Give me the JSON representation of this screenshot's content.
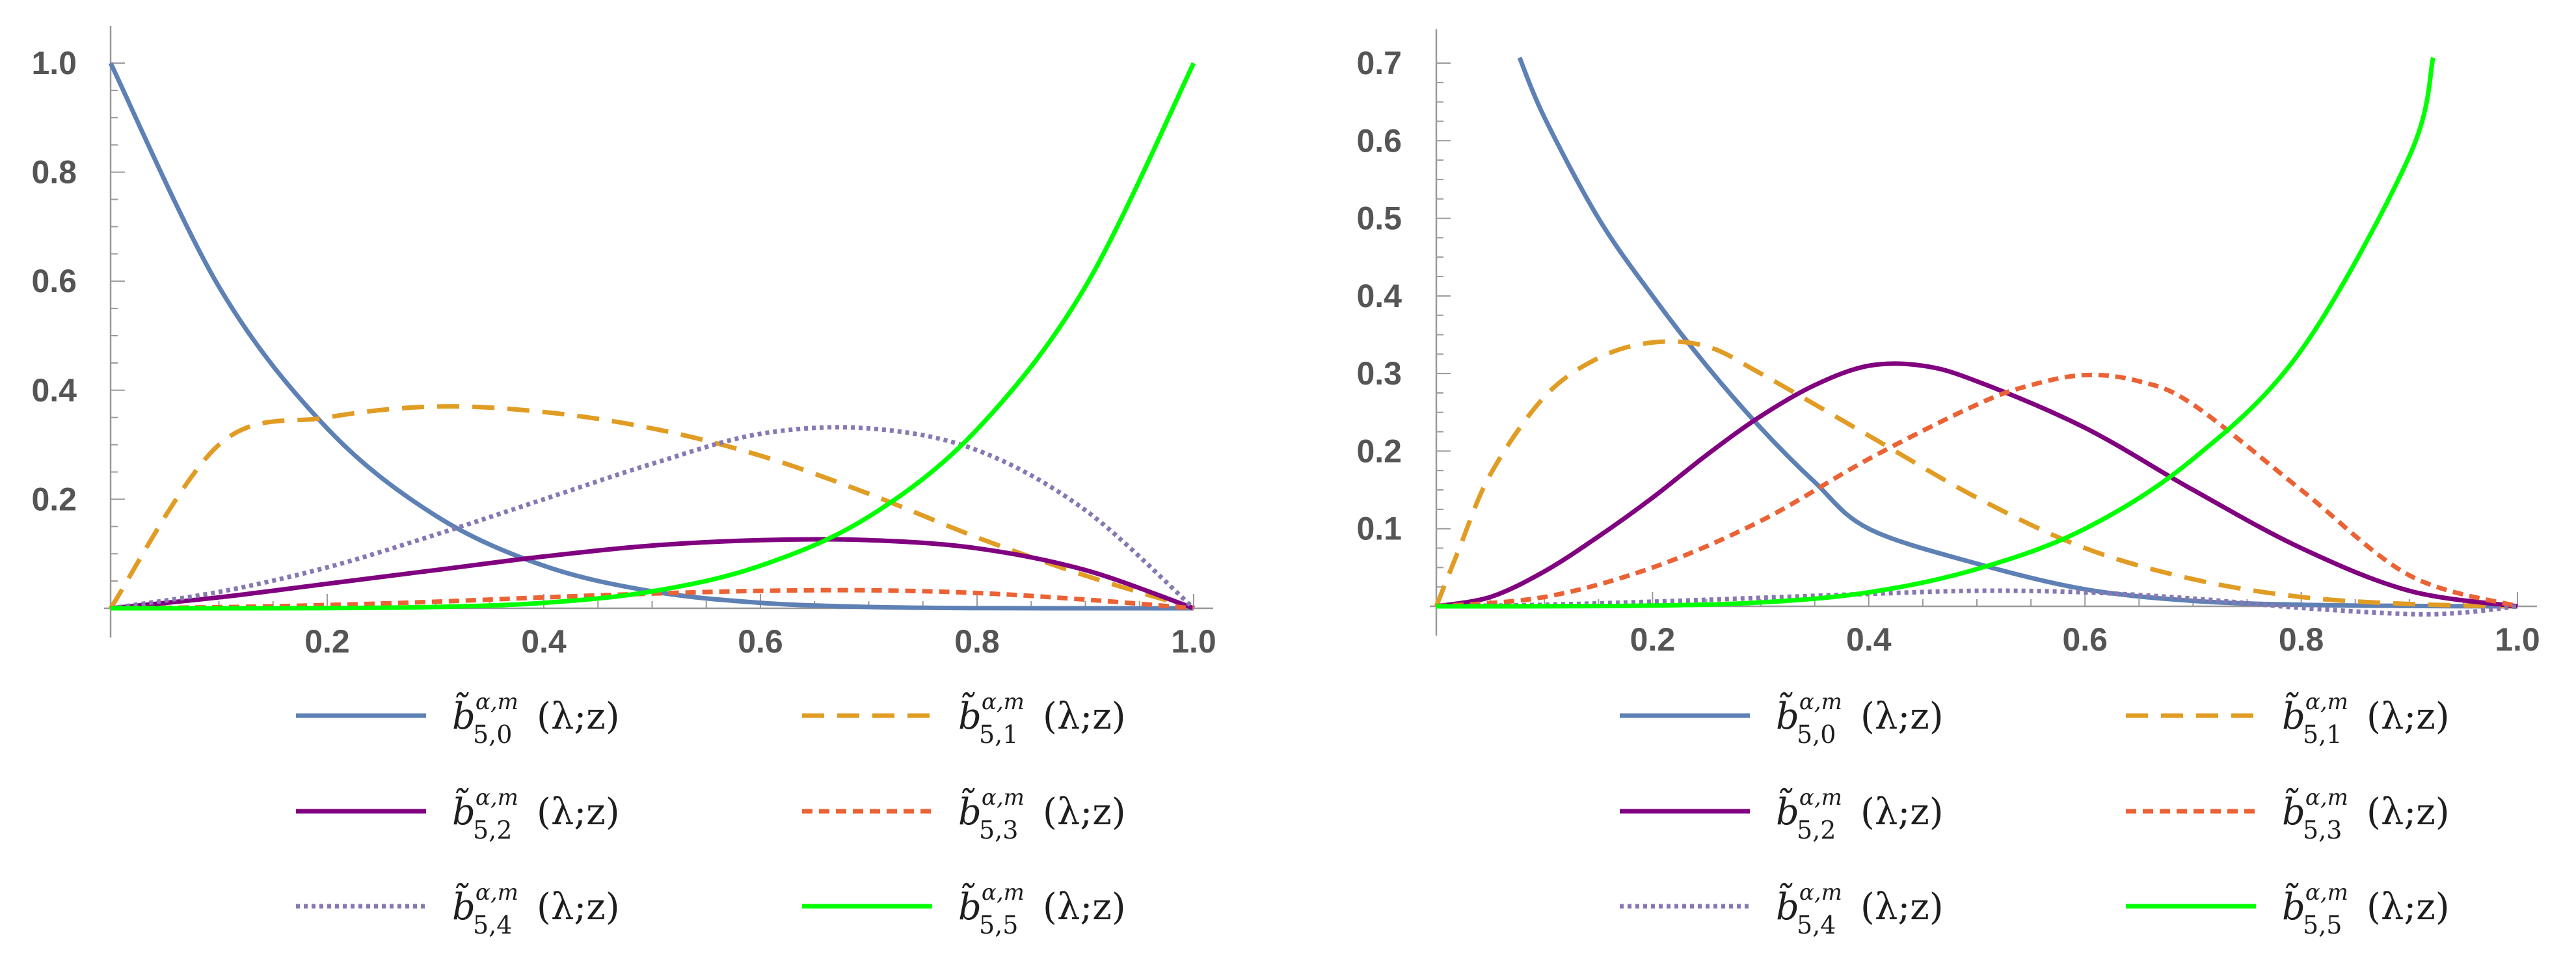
{
  "chart_data": [
    {
      "type": "line",
      "name": "left",
      "xlim": [
        0,
        1
      ],
      "ylim": [
        0,
        1
      ],
      "x_ticks": [
        "0.2",
        "0.4",
        "0.6",
        "0.8",
        "1.0"
      ],
      "y_ticks": [
        "0.2",
        "0.4",
        "0.6",
        "0.8",
        "1.0"
      ],
      "x_tick_values": [
        0.2,
        0.4,
        0.6,
        0.8,
        1.0
      ],
      "y_tick_values": [
        0.2,
        0.4,
        0.6,
        0.8,
        1.0
      ],
      "series": [
        {
          "id": "b50",
          "x": [
            0,
            0.1,
            0.2,
            0.3,
            0.4,
            0.5,
            0.6,
            0.7,
            0.8,
            0.9,
            1.0
          ],
          "y": [
            1.0,
            0.59,
            0.33,
            0.17,
            0.078,
            0.031,
            0.01,
            0.0024,
            0.0003,
            0.0,
            0.0
          ]
        },
        {
          "id": "b51",
          "x": [
            0,
            0.1,
            0.2,
            0.3,
            0.4,
            0.5,
            0.6,
            0.7,
            0.8,
            0.9,
            1.0
          ],
          "y": [
            0,
            0.3,
            0.35,
            0.37,
            0.36,
            0.33,
            0.28,
            0.21,
            0.13,
            0.06,
            0
          ]
        },
        {
          "id": "b52",
          "x": [
            0,
            0.1,
            0.2,
            0.3,
            0.4,
            0.5,
            0.6,
            0.7,
            0.8,
            0.9,
            1.0
          ],
          "y": [
            0,
            0.02,
            0.045,
            0.07,
            0.095,
            0.115,
            0.125,
            0.125,
            0.11,
            0.07,
            0
          ]
        },
        {
          "id": "b53",
          "x": [
            0,
            0.1,
            0.2,
            0.3,
            0.4,
            0.5,
            0.6,
            0.7,
            0.8,
            0.9,
            1.0
          ],
          "y": [
            0,
            0.002,
            0.006,
            0.012,
            0.02,
            0.027,
            0.032,
            0.033,
            0.028,
            0.016,
            0
          ]
        },
        {
          "id": "b54",
          "x": [
            0,
            0.1,
            0.2,
            0.3,
            0.4,
            0.5,
            0.6,
            0.7,
            0.8,
            0.9,
            1.0
          ],
          "y": [
            0,
            0.03,
            0.075,
            0.135,
            0.2,
            0.265,
            0.32,
            0.33,
            0.29,
            0.18,
            0
          ]
        },
        {
          "id": "b55",
          "x": [
            0,
            0.1,
            0.2,
            0.3,
            0.4,
            0.5,
            0.6,
            0.7,
            0.8,
            0.9,
            1.0
          ],
          "y": [
            0,
            1e-05,
            0.0003,
            0.0024,
            0.01,
            0.031,
            0.078,
            0.168,
            0.328,
            0.59,
            1.0
          ]
        }
      ]
    },
    {
      "type": "line",
      "name": "right",
      "xlim": [
        0,
        1
      ],
      "ylim": [
        0,
        0.7
      ],
      "x_ticks": [
        "0.2",
        "0.4",
        "0.6",
        "0.8",
        "1.0"
      ],
      "y_ticks": [
        "0.1",
        "0.2",
        "0.3",
        "0.4",
        "0.5",
        "0.6",
        "0.7"
      ],
      "x_tick_values": [
        0.2,
        0.4,
        0.6,
        0.8,
        1.0
      ],
      "y_tick_values": [
        0.1,
        0.2,
        0.3,
        0.4,
        0.5,
        0.6,
        0.7
      ],
      "series": [
        {
          "id": "b50",
          "x": [
            0.077,
            0.1,
            0.15,
            0.2,
            0.25,
            0.3,
            0.35,
            0.4,
            0.5,
            0.6,
            0.7,
            0.8,
            0.9,
            1.0
          ],
          "y": [
            0.707,
            0.63,
            0.5,
            0.4,
            0.31,
            0.23,
            0.16,
            0.1,
            0.055,
            0.022,
            0.007,
            0.002,
            0.0005,
            0.0
          ]
        },
        {
          "id": "b51",
          "x": [
            0,
            0.02,
            0.05,
            0.1,
            0.15,
            0.2,
            0.25,
            0.3,
            0.4,
            0.5,
            0.6,
            0.7,
            0.8,
            0.9,
            1.0
          ],
          "y": [
            0,
            0.07,
            0.17,
            0.27,
            0.32,
            0.34,
            0.335,
            0.3,
            0.22,
            0.14,
            0.075,
            0.035,
            0.012,
            0.003,
            0
          ]
        },
        {
          "id": "b52",
          "x": [
            0,
            0.05,
            0.1,
            0.15,
            0.2,
            0.25,
            0.3,
            0.35,
            0.4,
            0.45,
            0.5,
            0.6,
            0.7,
            0.8,
            0.9,
            1.0
          ],
          "y": [
            0,
            0.012,
            0.045,
            0.09,
            0.14,
            0.195,
            0.245,
            0.285,
            0.31,
            0.31,
            0.29,
            0.23,
            0.15,
            0.075,
            0.02,
            0
          ]
        },
        {
          "id": "b53",
          "x": [
            0,
            0.1,
            0.2,
            0.3,
            0.4,
            0.5,
            0.55,
            0.6,
            0.65,
            0.7,
            0.8,
            0.9,
            1.0
          ],
          "y": [
            0,
            0.012,
            0.05,
            0.11,
            0.19,
            0.26,
            0.285,
            0.298,
            0.29,
            0.26,
            0.15,
            0.04,
            0
          ]
        },
        {
          "id": "b54",
          "x": [
            0,
            0.1,
            0.2,
            0.3,
            0.4,
            0.5,
            0.6,
            0.7,
            0.8,
            0.9,
            0.95,
            1.0
          ],
          "y": [
            0,
            0.002,
            0.006,
            0.011,
            0.016,
            0.02,
            0.018,
            0.01,
            -0.002,
            -0.01,
            -0.008,
            0
          ]
        },
        {
          "id": "b55",
          "x": [
            0,
            0.1,
            0.2,
            0.3,
            0.4,
            0.5,
            0.6,
            0.7,
            0.8,
            0.9,
            0.922
          ],
          "y": [
            0,
            0.0001,
            0.001,
            0.005,
            0.018,
            0.048,
            0.1,
            0.19,
            0.33,
            0.58,
            0.707
          ]
        }
      ]
    }
  ],
  "legend": {
    "items": [
      {
        "id": "b50",
        "base": "b̃",
        "sup": "α,m",
        "sub": "5,0",
        "arg": "(λ;z)",
        "color": "#5e81b5",
        "dash": ""
      },
      {
        "id": "b51",
        "base": "b̃",
        "sup": "α,m",
        "sub": "5,1",
        "arg": "(λ;z)",
        "color": "#e19c24",
        "dash": "34,20"
      },
      {
        "id": "b52",
        "base": "b̃",
        "sup": "α,m",
        "sub": "5,2",
        "arg": "(λ;z)",
        "color": "#800080",
        "dash": ""
      },
      {
        "id": "b53",
        "base": "b̃",
        "sup": "α,m",
        "sub": "5,3",
        "arg": "(λ;z)",
        "color": "#eb6235",
        "dash": "16,10"
      },
      {
        "id": "b54",
        "base": "b̃",
        "sup": "α,m",
        "sub": "5,4",
        "arg": "(λ;z)",
        "color": "#8778b3",
        "dash": "6,6"
      },
      {
        "id": "b55",
        "base": "b̃",
        "sup": "α,m",
        "sub": "5,5",
        "arg": "(λ;z)",
        "color": "#00ff00",
        "dash": ""
      }
    ]
  }
}
